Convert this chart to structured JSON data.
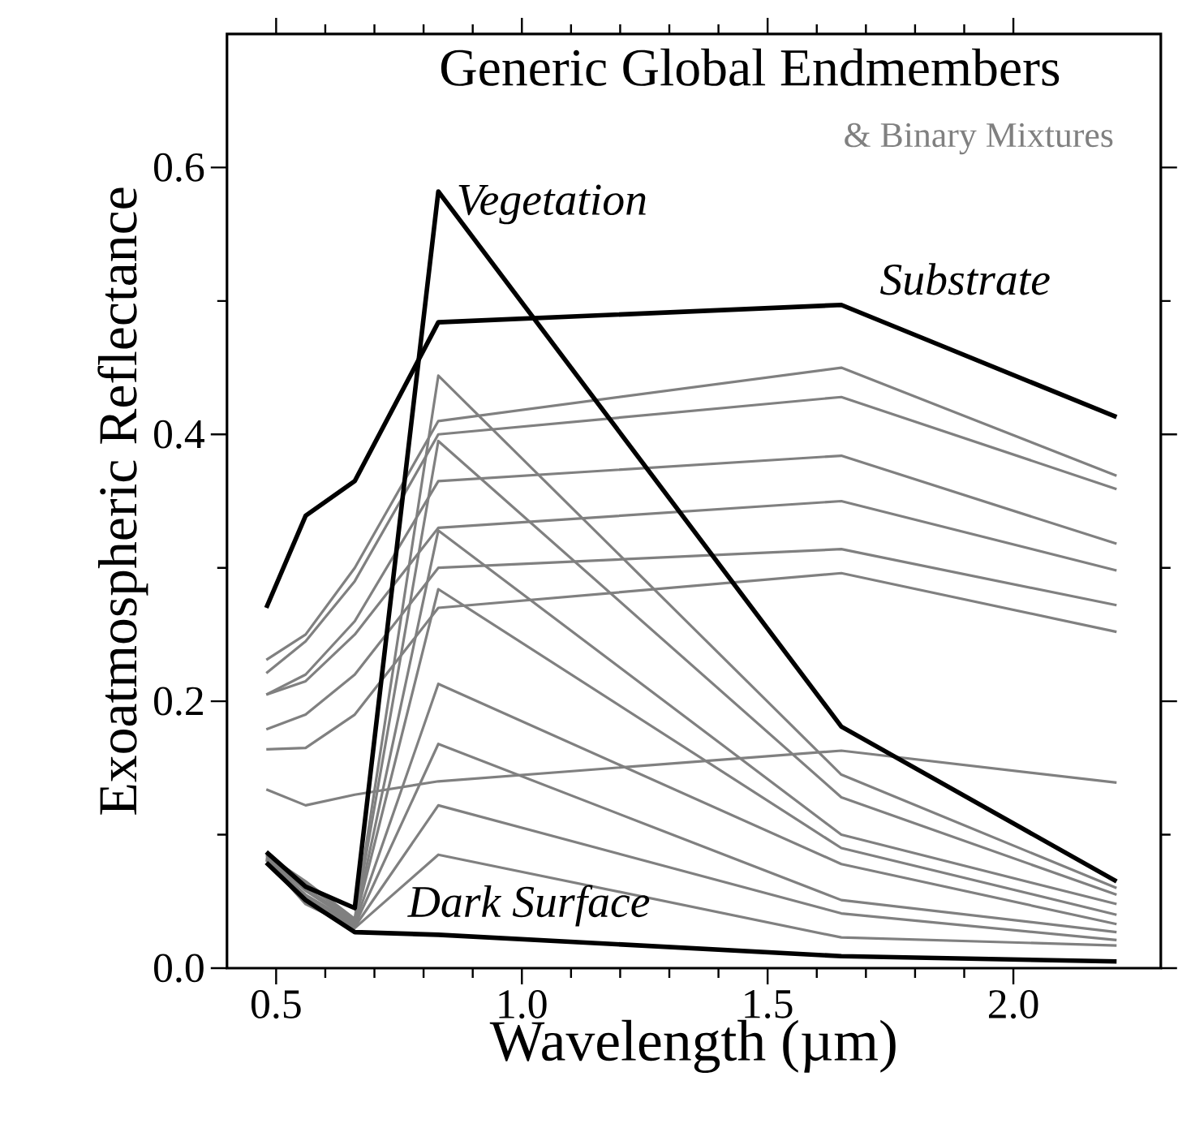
{
  "chart_data": {
    "type": "line",
    "title": "Generic Global Endmembers",
    "subtitle": "& Binary Mixtures",
    "xlabel": "Wavelength (µm)",
    "ylabel": "Exoatmospheric Reflectance",
    "x": [
      0.48,
      0.56,
      0.66,
      0.83,
      1.65,
      2.21
    ],
    "xlim": [
      0.4,
      2.3
    ],
    "ylim": [
      0,
      0.7
    ],
    "xticks": [
      {
        "value": 0.5,
        "label": "0.5"
      },
      {
        "value": 1.0,
        "label": "1.0"
      },
      {
        "value": 1.5,
        "label": "1.5"
      },
      {
        "value": 2.0,
        "label": "2.0"
      }
    ],
    "yticks": [
      {
        "value": 0.0,
        "label": "0.0"
      },
      {
        "value": 0.2,
        "label": "0.2"
      },
      {
        "value": 0.4,
        "label": "0.4"
      },
      {
        "value": 0.6,
        "label": "0.6"
      }
    ],
    "grid": false,
    "legend": false,
    "marker": "none",
    "line_style": "solid",
    "series": [
      {
        "color": "#808080",
        "values": [
          0.231,
          0.25,
          0.3,
          0.41,
          0.45,
          0.369
        ]
      },
      {
        "color": "#808080",
        "values": [
          0.221,
          0.245,
          0.29,
          0.4,
          0.428,
          0.359
        ]
      },
      {
        "color": "#808080",
        "values": [
          0.205,
          0.22,
          0.26,
          0.365,
          0.384,
          0.318
        ]
      },
      {
        "color": "#808080",
        "values": [
          0.205,
          0.215,
          0.25,
          0.33,
          0.35,
          0.298
        ]
      },
      {
        "color": "#808080",
        "values": [
          0.179,
          0.19,
          0.22,
          0.3,
          0.314,
          0.272
        ]
      },
      {
        "color": "#808080",
        "values": [
          0.164,
          0.165,
          0.19,
          0.27,
          0.296,
          0.252
        ]
      },
      {
        "color": "#808080",
        "values": [
          0.134,
          0.122,
          0.13,
          0.14,
          0.163,
          0.139
        ]
      },
      {
        "color": "#808080",
        "values": [
          0.085,
          0.065,
          0.037,
          0.444,
          0.145,
          0.06
        ]
      },
      {
        "color": "#808080",
        "values": [
          0.085,
          0.063,
          0.036,
          0.395,
          0.128,
          0.055
        ]
      },
      {
        "color": "#808080",
        "values": [
          0.084,
          0.06,
          0.035,
          0.328,
          0.1,
          0.048
        ]
      },
      {
        "color": "#808080",
        "values": [
          0.083,
          0.058,
          0.034,
          0.284,
          0.09,
          0.04
        ]
      },
      {
        "color": "#808080",
        "values": [
          0.082,
          0.055,
          0.033,
          0.213,
          0.078,
          0.033
        ]
      },
      {
        "color": "#808080",
        "values": [
          0.082,
          0.053,
          0.032,
          0.168,
          0.051,
          0.027
        ]
      },
      {
        "color": "#808080",
        "values": [
          0.081,
          0.05,
          0.031,
          0.122,
          0.041,
          0.021
        ]
      },
      {
        "color": "#808080",
        "values": [
          0.081,
          0.048,
          0.03,
          0.085,
          0.023,
          0.017
        ]
      },
      {
        "name": "Substrate",
        "color": "#000000",
        "values": [
          0.27,
          0.339,
          0.365,
          0.484,
          0.497,
          0.413
        ]
      },
      {
        "name": "Vegetation",
        "color": "#000000",
        "values": [
          0.087,
          0.061,
          0.045,
          0.582,
          0.181,
          0.065
        ]
      },
      {
        "name": "Dark Surface",
        "color": "#000000",
        "values": [
          0.079,
          0.051,
          0.027,
          0.025,
          0.009,
          0.005
        ]
      }
    ]
  }
}
